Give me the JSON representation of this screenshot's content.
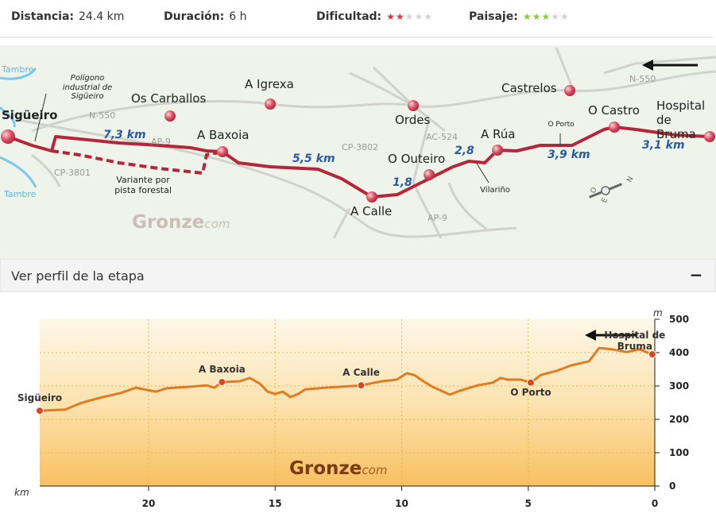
{
  "header": {
    "stats": [
      {
        "label": "Distancia:",
        "value": "24.4 km"
      },
      {
        "label": "Duración:",
        "value": "6 h"
      },
      {
        "label": "Dificultad:",
        "rating": 2,
        "max": 5,
        "color": "#d9363e"
      },
      {
        "label": "Paisaje:",
        "rating": 3,
        "max": 5,
        "color": "#8cc63f"
      }
    ]
  },
  "map": {
    "towns": [
      "Sigüeiro",
      "Os Carballos",
      "A Igrexa",
      "Ordes",
      "Castrelos",
      "O Castro",
      "Hospital de Bruma",
      "A Baxoia",
      "A Calle",
      "O Outeiro",
      "A Rúa"
    ],
    "distances": [
      "7,3 km",
      "5,5 km",
      "1,8",
      "2,8",
      "3,9 km",
      "3,1 km"
    ],
    "roads": [
      "N-550",
      "AP-9",
      "CP-3802",
      "AC-524",
      "CP-3801",
      "AP-9",
      "N-550"
    ],
    "notes": [
      "Polígono industrial de Sigüeiro",
      "Variante por pista forestal",
      "O Porto",
      "Vilariño"
    ],
    "rivers": [
      "Tambre",
      "Tambre"
    ],
    "compass": [
      "O",
      "N",
      "E"
    ],
    "logo": {
      "brand": "Gronze",
      "suffix": "com"
    }
  },
  "profile_bar": {
    "title": "Ver perfil de la etapa",
    "toggle": "−"
  },
  "chart_data": {
    "type": "line",
    "color": "#e07b22",
    "x": [
      24.3,
      23.3,
      22.7,
      22.4,
      21.8,
      21.1,
      20.5,
      20.2,
      19.7,
      19.3,
      18.3,
      17.7,
      17.4,
      17.1,
      16.4,
      16.0,
      15.6,
      15.3,
      15.0,
      14.7,
      14.4,
      14.1,
      13.8,
      13.0,
      11.6,
      10.8,
      10.2,
      9.8,
      9.5,
      9.2,
      8.8,
      8.1,
      7.7,
      7.0,
      6.4,
      6.1,
      5.8,
      5.3,
      4.9,
      4.5,
      3.9,
      3.3,
      2.6,
      2.2,
      1.7,
      1.1,
      0.6,
      0.1
    ],
    "values": [
      226,
      229,
      248,
      255,
      267,
      279,
      295,
      290,
      283,
      293,
      298,
      302,
      295,
      312,
      314,
      324,
      307,
      283,
      276,
      283,
      267,
      276,
      290,
      295,
      302,
      314,
      319,
      338,
      333,
      317,
      298,
      274,
      286,
      302,
      310,
      324,
      319,
      319,
      310,
      333,
      345,
      362,
      374,
      414,
      410,
      402,
      410,
      395
    ],
    "points": [
      {
        "label": "Sigüeiro",
        "x": 24.3,
        "y": 226
      },
      {
        "label": "A Baxoia",
        "x": 17.1,
        "y": 312
      },
      {
        "label": "A Calle",
        "x": 11.6,
        "y": 302
      },
      {
        "label": "O Porto",
        "x": 4.9,
        "y": 310
      },
      {
        "label": "Hospital de Bruma",
        "x": 0.1,
        "y": 395
      }
    ],
    "xlim": [
      24.3,
      0
    ],
    "ylim": [
      0,
      500
    ],
    "xticks": [
      20,
      15,
      10,
      5,
      0
    ],
    "yticks": [
      0,
      100,
      200,
      300,
      400,
      500
    ],
    "xlabel": "km",
    "ylabel": "m",
    "grid": true,
    "watermark": {
      "brand": "Gronze",
      "suffix": "com"
    }
  }
}
